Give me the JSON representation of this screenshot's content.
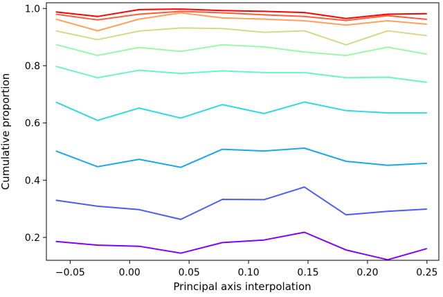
{
  "chart_data": {
    "type": "line",
    "title": "",
    "xlabel": "Principal axis interpolation",
    "ylabel": "Cumulative proportion",
    "xlim": [
      -0.07,
      0.26
    ],
    "ylim": [
      0.12,
      1.02
    ],
    "xticks": [
      -0.05,
      0.0,
      0.05,
      0.1,
      0.15,
      0.2,
      0.25
    ],
    "xtick_labels": [
      "−0.05",
      "0.00",
      "0.05",
      "0.10",
      "0.15",
      "0.20",
      "0.25"
    ],
    "yticks": [
      0.2,
      0.4,
      0.6,
      0.8,
      1.0
    ],
    "ytick_labels": [
      "0.2",
      "0.4",
      "0.6",
      "0.8",
      "1.0"
    ],
    "grid": false,
    "legend": false,
    "x": [
      -0.062,
      -0.027,
      0.008,
      0.043,
      0.078,
      0.113,
      0.147,
      0.182,
      0.217,
      0.25
    ],
    "series": [
      {
        "color": "#8000ff",
        "values": [
          0.186,
          0.173,
          0.169,
          0.145,
          0.182,
          0.191,
          0.218,
          0.156,
          0.122,
          0.161
        ]
      },
      {
        "color": "#4a5cf7",
        "values": [
          0.33,
          0.309,
          0.297,
          0.263,
          0.333,
          0.332,
          0.376,
          0.279,
          0.291,
          0.299
        ]
      },
      {
        "color": "#1ba6eb",
        "values": [
          0.502,
          0.447,
          0.473,
          0.445,
          0.508,
          0.502,
          0.512,
          0.466,
          0.452,
          0.459
        ]
      },
      {
        "color": "#30d8df",
        "values": [
          0.673,
          0.609,
          0.652,
          0.617,
          0.664,
          0.633,
          0.673,
          0.643,
          0.635,
          0.635
        ]
      },
      {
        "color": "#66f6c3",
        "values": [
          0.798,
          0.758,
          0.784,
          0.773,
          0.782,
          0.776,
          0.776,
          0.758,
          0.76,
          0.742
        ]
      },
      {
        "color": "#9cf8a6",
        "values": [
          0.874,
          0.836,
          0.864,
          0.85,
          0.873,
          0.866,
          0.848,
          0.836,
          0.865,
          0.84
        ]
      },
      {
        "color": "#d6d88a",
        "values": [
          0.922,
          0.891,
          0.921,
          0.932,
          0.93,
          0.917,
          0.922,
          0.873,
          0.922,
          0.905
        ]
      },
      {
        "color": "#ffa060",
        "values": [
          0.963,
          0.922,
          0.963,
          0.985,
          0.967,
          0.963,
          0.957,
          0.942,
          0.957,
          0.945
        ]
      },
      {
        "color": "#ff5c3a",
        "values": [
          0.98,
          0.96,
          0.98,
          0.99,
          0.985,
          0.978,
          0.972,
          0.958,
          0.975,
          0.962
        ]
      },
      {
        "color": "#ff0000",
        "values": [
          0.988,
          0.972,
          0.996,
          0.998,
          0.993,
          0.99,
          0.986,
          0.965,
          0.98,
          0.982
        ]
      }
    ]
  }
}
